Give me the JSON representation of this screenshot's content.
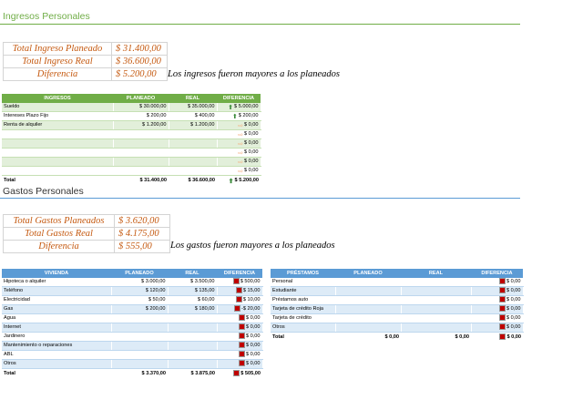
{
  "ingresos": {
    "title": "Ingresos Personales",
    "summary": [
      {
        "label": "Total Ingreso Planeado",
        "value": "$ 31.400,00"
      },
      {
        "label": "Total Ingreso Real",
        "value": "$ 36.600,00"
      },
      {
        "label": "Diferencia",
        "value": "$ 5.200,00"
      }
    ],
    "note": "Los ingresos fueron mayores a los planeados",
    "table": {
      "headers": [
        "INGRESOS",
        "PLANEADO",
        "REAL",
        "DIFERENCIA"
      ],
      "rows": [
        {
          "name": "Sueldo",
          "planned": "$ 30.000,00",
          "real": "$ 35.000,00",
          "diff": "$ 5.000,00",
          "ind": "up"
        },
        {
          "name": "Intereses Plazo Fijo",
          "planned": "$ 200,00",
          "real": "$ 400,00",
          "diff": "$ 200,00",
          "ind": "up"
        },
        {
          "name": "Renta de alquiler",
          "planned": "$ 1.200,00",
          "real": "$ 1.200,00",
          "diff": "$ 0,00",
          "ind": "right"
        },
        {
          "name": "",
          "planned": "",
          "real": "",
          "diff": "$ 0,00",
          "ind": "right"
        },
        {
          "name": "",
          "planned": "",
          "real": "",
          "diff": "$ 0,00",
          "ind": "right"
        },
        {
          "name": "",
          "planned": "",
          "real": "",
          "diff": "$ 0,00",
          "ind": "right"
        },
        {
          "name": "",
          "planned": "",
          "real": "",
          "diff": "$ 0,00",
          "ind": "right"
        },
        {
          "name": "",
          "planned": "",
          "real": "",
          "diff": "$ 0,00",
          "ind": "right"
        }
      ],
      "total": {
        "name": "Total",
        "planned": "$ 31.400,00",
        "real": "$ 36.600,00",
        "diff": "$ 5.200,00",
        "ind": "up"
      }
    }
  },
  "gastos": {
    "title": "Gastos Personales",
    "summary": [
      {
        "label": "Total Gastos Planeados",
        "value": "$ 3.620,00"
      },
      {
        "label": "Total Gastos Real",
        "value": "$ 4.175,00"
      },
      {
        "label": "Diferencia",
        "value": "$ 555,00"
      }
    ],
    "note": "Los gastos fueron mayores a los planeados",
    "vivienda": {
      "headers": [
        "VIVIENDA",
        "PLANEADO",
        "REAL",
        "DIFERENCIA"
      ],
      "rows": [
        {
          "name": "Hipoteca o alquiler",
          "planned": "$ 3.000,00",
          "real": "$ 3.500,00",
          "diff": "$ 500,00"
        },
        {
          "name": "Teléfono",
          "planned": "$ 120,00",
          "real": "$ 135,00",
          "diff": "$ 15,00"
        },
        {
          "name": "Electricidad",
          "planned": "$ 50,00",
          "real": "$ 60,00",
          "diff": "$ 10,00"
        },
        {
          "name": "Gas",
          "planned": "$ 200,00",
          "real": "$ 180,00",
          "diff": "-$ 20,00"
        },
        {
          "name": "Agua",
          "planned": "",
          "real": "",
          "diff": "$ 0,00"
        },
        {
          "name": "Internet",
          "planned": "",
          "real": "",
          "diff": "$ 0,00"
        },
        {
          "name": "Jardinero",
          "planned": "",
          "real": "",
          "diff": "$ 0,00"
        },
        {
          "name": "Mantenimiento o reparaciones",
          "planned": "",
          "real": "",
          "diff": "$ 0,00"
        },
        {
          "name": "ABL",
          "planned": "",
          "real": "",
          "diff": "$ 0,00"
        },
        {
          "name": "Otros",
          "planned": "",
          "real": "",
          "diff": "$ 0,00"
        }
      ],
      "total": {
        "name": "Total",
        "planned": "$ 3.370,00",
        "real": "$ 3.875,00",
        "diff": "$ 505,00"
      }
    },
    "prestamos": {
      "headers": [
        "PRÉSTAMOS",
        "PLANEADO",
        "REAL",
        "DIFERENCIA"
      ],
      "rows": [
        {
          "name": "Personal",
          "planned": "",
          "real": "",
          "diff": "$ 0,00"
        },
        {
          "name": "Estudiante",
          "planned": "",
          "real": "",
          "diff": "$ 0,00"
        },
        {
          "name": "Préstamos auto",
          "planned": "",
          "real": "",
          "diff": "$ 0,00"
        },
        {
          "name": "Tarjeta de crédito Roja",
          "planned": "",
          "real": "",
          "diff": "$ 0,00"
        },
        {
          "name": "Tarjeta de crédito",
          "planned": "",
          "real": "",
          "diff": "$ 0,00"
        },
        {
          "name": "Otros",
          "planned": "",
          "real": "",
          "diff": "$ 0,00"
        }
      ],
      "total": {
        "name": "Total",
        "planned": "$ 0,00",
        "real": "$ 0,00",
        "diff": "$ 0,00"
      }
    }
  },
  "colors": {
    "ingresos_accent": "#70ad47",
    "gastos_accent": "#5b9bd5",
    "summary_text": "#c55a11"
  }
}
